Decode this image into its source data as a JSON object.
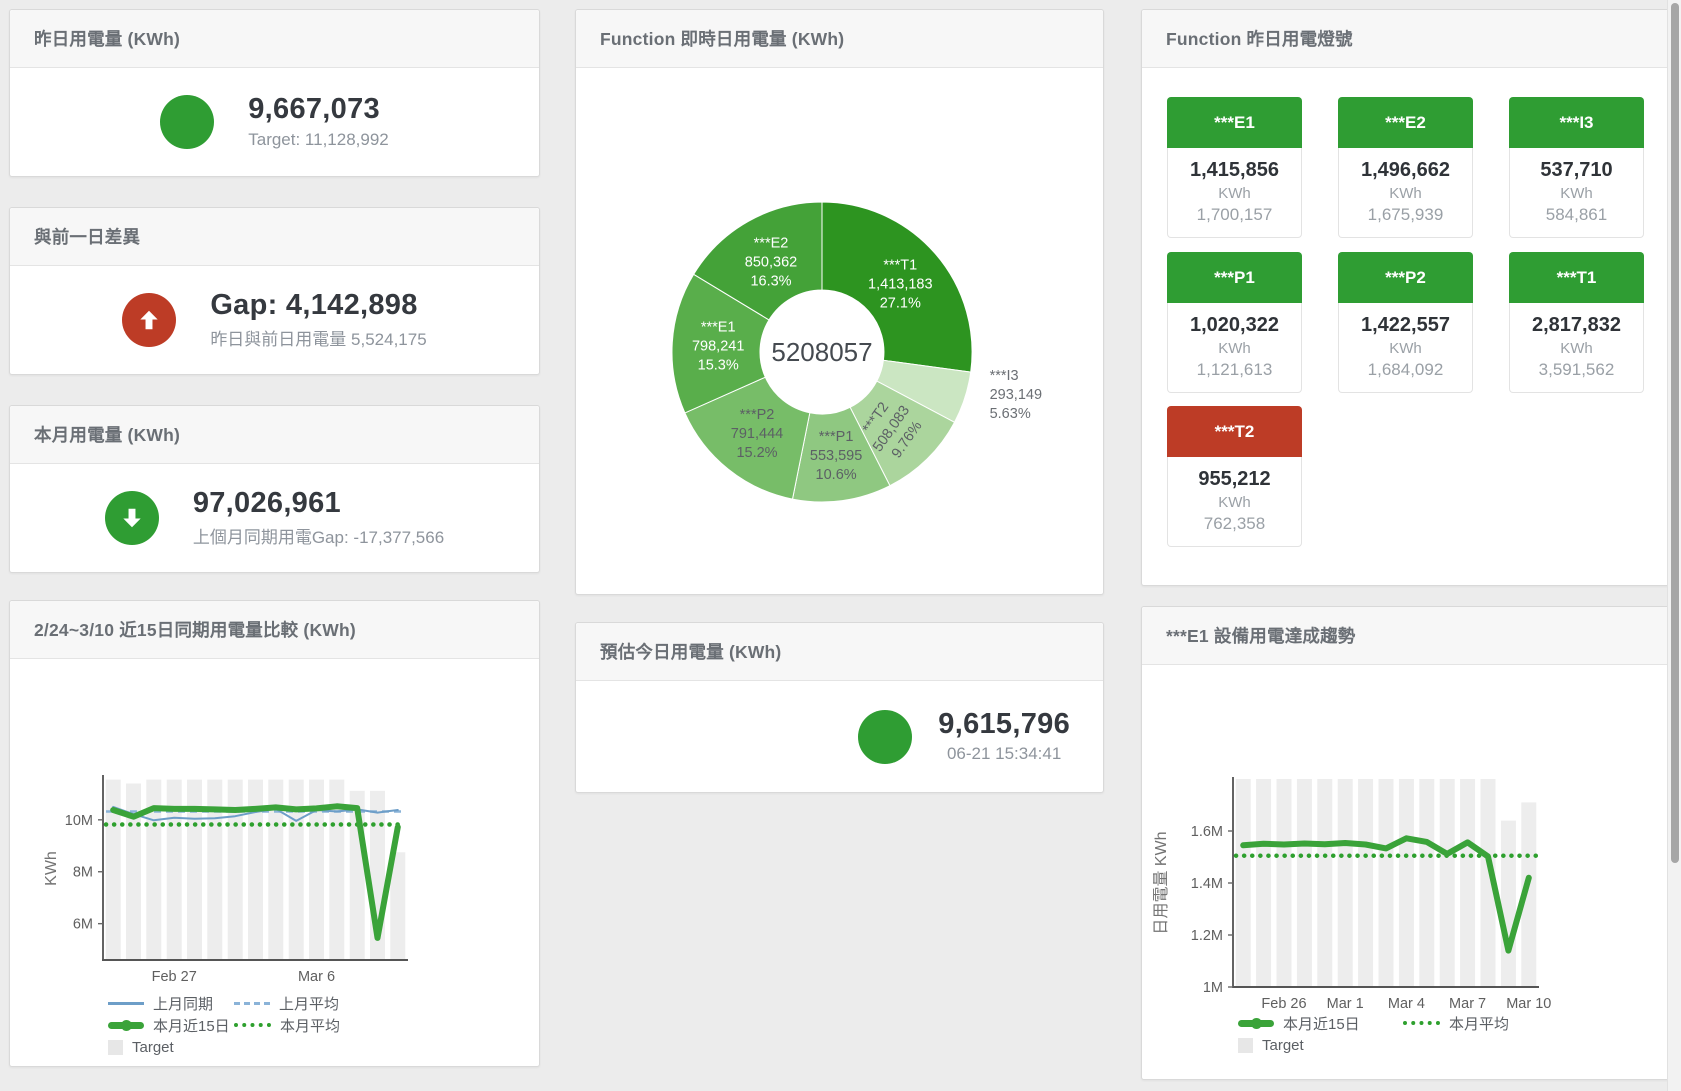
{
  "status_colors": {
    "green": "#2f9d33",
    "red": "#bd3c26"
  },
  "cards": {
    "yesterday": {
      "title": "昨日用電量 (KWh)",
      "value": "9,667,073",
      "subtext": "Target: 11,128,992"
    },
    "gap": {
      "title": "與前一日差異",
      "value": "Gap: 4,142,898",
      "subtext": "昨日與前日用電量 5,524,175"
    },
    "month": {
      "title": "本月用電量 (KWh)",
      "value": "97,026,961",
      "subtext": "上個月同期用電Gap: -17,377,566"
    },
    "realtime": {
      "title": "Function 即時日用電量 (KWh)"
    },
    "estimate": {
      "title": "預估今日用電量 (KWh)",
      "value": "9,615,796",
      "subtext": "06-21 15:34:41"
    },
    "lights": {
      "title": "Function 昨日用電燈號"
    },
    "compare": {
      "title": "2/24~3/10 近15日同期用電量比較 (KWh)"
    },
    "trend": {
      "title": "***E1 設備用電達成趨勢"
    }
  },
  "lights_tiles": [
    {
      "label": "***E1",
      "value": "1,415,856",
      "unit": "KWh",
      "target": "1,700,157",
      "status": "green"
    },
    {
      "label": "***E2",
      "value": "1,496,662",
      "unit": "KWh",
      "target": "1,675,939",
      "status": "green"
    },
    {
      "label": "***I3",
      "value": "537,710",
      "unit": "KWh",
      "target": "584,861",
      "status": "green"
    },
    {
      "label": "***P1",
      "value": "1,020,322",
      "unit": "KWh",
      "target": "1,121,613",
      "status": "green"
    },
    {
      "label": "***P2",
      "value": "1,422,557",
      "unit": "KWh",
      "target": "1,684,092",
      "status": "green"
    },
    {
      "label": "***T1",
      "value": "2,817,832",
      "unit": "KWh",
      "target": "3,591,562",
      "status": "green"
    },
    {
      "label": "***T2",
      "value": "955,212",
      "unit": "KWh",
      "target": "762,358",
      "status": "red"
    }
  ],
  "chart_data": [
    {
      "name": "realtime_pie",
      "type": "pie",
      "title": "Function 即時日用電量 (KWh)",
      "center_total": "5208057",
      "slices": [
        {
          "name": "***T1",
          "value": 1413183,
          "value_label": "1,413,183",
          "pct_label": "27.1%",
          "color": "#2d9420",
          "text_color": "#ffffff"
        },
        {
          "name": "***I3",
          "value": 293149,
          "value_label": "293,149",
          "pct_label": "5.63%",
          "color": "#cbe6c2",
          "text_color": "#6b6f74",
          "outside": true
        },
        {
          "name": "***T2",
          "value": 508083,
          "value_label": "508,083",
          "pct_label": "9.76%",
          "color": "#abd59d",
          "text_color": "#5c6065",
          "rotate": -55
        },
        {
          "name": "***P1",
          "value": 553595,
          "value_label": "553,595",
          "pct_label": "10.6%",
          "color": "#8fc881",
          "text_color": "#5c6065"
        },
        {
          "name": "***P2",
          "value": 791444,
          "value_label": "791,444",
          "pct_label": "15.2%",
          "color": "#77bd68",
          "text_color": "#5c6065"
        },
        {
          "name": "***E1",
          "value": 798241,
          "value_label": "798,241",
          "pct_label": "15.3%",
          "color": "#59ae4b",
          "text_color": "#ffffff"
        },
        {
          "name": "***E2",
          "value": 850362,
          "value_label": "850,362",
          "pct_label": "16.3%",
          "color": "#44a238",
          "text_color": "#ffffff"
        }
      ]
    },
    {
      "name": "compare15",
      "type": "line",
      "title": "2/24~3/10 近15日同期用電量比較 (KWh)",
      "ylabel": "KWh",
      "ylim": [
        4.6,
        11.65
      ],
      "yticks": [
        {
          "v": 10,
          "label": "10M"
        },
        {
          "v": 8,
          "label": "8M"
        },
        {
          "v": 6,
          "label": "6M"
        }
      ],
      "xticks": [
        {
          "i": 3,
          "label": "Feb 27"
        },
        {
          "i": 10,
          "label": "Mar 6"
        }
      ],
      "bar_color": "#ededed",
      "target_bars": [
        11.55,
        11.4,
        11.55,
        11.55,
        11.55,
        11.55,
        11.55,
        11.55,
        11.55,
        11.55,
        11.55,
        11.55,
        11.12,
        11.12,
        8.75
      ],
      "series": [
        {
          "name": "上月同期",
          "color": "#6d9ec8",
          "width": 2,
          "values": [
            10.5,
            10.22,
            9.98,
            10.08,
            10.04,
            10.06,
            10.14,
            10.3,
            10.42,
            9.96,
            10.38,
            10.32,
            10.4,
            10.28,
            10.38
          ]
        },
        {
          "name": "本月近15日",
          "color": "#3aa339",
          "width": 6,
          "values": [
            10.38,
            10.12,
            10.45,
            10.42,
            10.42,
            10.4,
            10.38,
            10.42,
            10.48,
            10.4,
            10.44,
            10.52,
            10.45,
            5.45,
            9.72
          ]
        }
      ],
      "avg_lines": [
        {
          "name": "上月平均",
          "color": "#8ab3d8",
          "style": "dashed",
          "value": 10.32
        },
        {
          "name": "本月平均",
          "color": "#2ea02e",
          "style": "dotted",
          "value": 9.82
        }
      ],
      "legend_col_w": 126,
      "legend": [
        [
          {
            "label": "上月同期",
            "marker": "solid",
            "color": "#6d9ec8"
          },
          {
            "label": "上月平均",
            "marker": "dashed",
            "color": "#8ab3d8"
          }
        ],
        [
          {
            "label": "本月近15日",
            "marker": "thick",
            "color": "#3aa339"
          },
          {
            "label": "本月平均",
            "marker": "dotted",
            "color": "#2ea02e"
          }
        ],
        [
          {
            "label": "Target",
            "marker": "box",
            "color": "#e7e7e7"
          }
        ]
      ]
    },
    {
      "name": "e1trend",
      "type": "line",
      "title": "***E1 設備用電達成趨勢",
      "ylabel": "日用電量 KWh",
      "ylim": [
        1.0,
        1.8
      ],
      "yticks": [
        {
          "v": 1.6,
          "label": "1.6M"
        },
        {
          "v": 1.4,
          "label": "1.4M"
        },
        {
          "v": 1.2,
          "label": "1.2M"
        },
        {
          "v": 1.0,
          "label": "1M"
        }
      ],
      "xticks": [
        {
          "i": 2,
          "label": "Feb 26"
        },
        {
          "i": 5,
          "label": "Mar 1"
        },
        {
          "i": 8,
          "label": "Mar 4"
        },
        {
          "i": 11,
          "label": "Mar 7"
        },
        {
          "i": 14,
          "label": "Mar 10"
        }
      ],
      "bar_color": "#ededed",
      "target_bars": [
        1.8,
        1.8,
        1.8,
        1.8,
        1.8,
        1.8,
        1.8,
        1.8,
        1.8,
        1.8,
        1.8,
        1.8,
        1.8,
        1.64,
        1.71
      ],
      "series": [
        {
          "name": "本月近15日",
          "color": "#3aa339",
          "width": 6,
          "values": [
            1.545,
            1.551,
            1.548,
            1.552,
            1.549,
            1.554,
            1.548,
            1.533,
            1.572,
            1.558,
            1.512,
            1.556,
            1.502,
            1.14,
            1.42
          ]
        }
      ],
      "avg_lines": [
        {
          "name": "本月平均",
          "color": "#2ea02e",
          "style": "dotted",
          "value": 1.505
        }
      ],
      "legend_col_w": 165,
      "legend": [
        [
          {
            "label": "本月近15日",
            "marker": "thick",
            "color": "#3aa339"
          },
          {
            "label": "本月平均",
            "marker": "dotted",
            "color": "#2ea02e"
          }
        ],
        [
          {
            "label": "Target",
            "marker": "box",
            "color": "#e7e7e7"
          }
        ]
      ]
    }
  ]
}
